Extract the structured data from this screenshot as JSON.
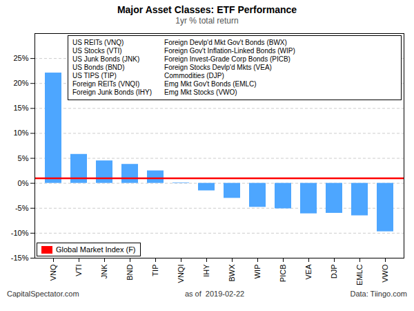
{
  "chart_data": {
    "type": "bar",
    "title": "Major Asset Classes: ETF Performance",
    "subtitle": "1yr % total return",
    "categories": [
      "VNQ",
      "VTI",
      "JNK",
      "BND",
      "TIP",
      "VNQI",
      "IHY",
      "BWX",
      "WIP",
      "PICB",
      "VEA",
      "DJP",
      "EMLC",
      "VWO"
    ],
    "values": [
      22.1,
      5.8,
      4.5,
      3.8,
      2.5,
      0.1,
      -1.5,
      -3.0,
      -4.8,
      -5.1,
      -6.1,
      -6.0,
      -6.5,
      -9.7
    ],
    "color": "#4da6ff",
    "ylim": [
      -15,
      30
    ],
    "yticks": [
      {
        "value": -15,
        "label": "-15%"
      },
      {
        "value": -10,
        "label": "-10%"
      },
      {
        "value": -5,
        "label": "-5%"
      },
      {
        "value": 0,
        "label": "0%"
      },
      {
        "value": 5,
        "label": "5%"
      },
      {
        "value": 10,
        "label": "10%"
      },
      {
        "value": 15,
        "label": "15%"
      },
      {
        "value": 20,
        "label": "20%"
      },
      {
        "value": 25,
        "label": "25%"
      }
    ],
    "grid": true,
    "reference_line": {
      "name": "Global Market Index (F)",
      "value": 1.0,
      "color": "#ff0000"
    },
    "legend": "lower left",
    "key": [
      [
        "US REITs (VNQ)",
        "US Stocks (VTI)",
        "US Junk Bonds (JNK)",
        "US Bonds (BND)",
        "US TIPS (TIP)",
        "Foreign REITs (VNQI)",
        "Foreign Junk Bonds (IHY)"
      ],
      [
        "Foreign Devlp'd Mkt Gov't Bonds (BWX)",
        "Foreign Gov't Inflation-Linked Bonds (WIP)",
        "Foreign Invest-Grade Corp Bonds (PICB)",
        "Foreign Stocks Devlp'd Mkts (VEA)",
        "Commodities (DJP)",
        "Emg Mkt Gov't Bonds (EMLC)",
        "Emg Mkt Stocks (VWO)"
      ]
    ],
    "footer": [
      "CapitalSpectator.com",
      "as of  2019-02-22",
      "Data: Tiingo.com"
    ]
  }
}
